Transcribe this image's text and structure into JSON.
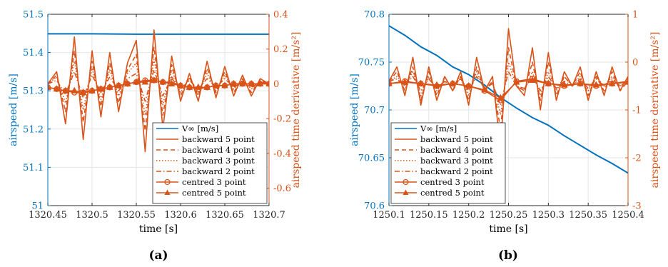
{
  "colors": {
    "airspeed": "#0072BD",
    "derivative": "#D95319",
    "grid": "#e6e6e6",
    "axis": "#262626"
  },
  "chart_data": [
    {
      "type": "line",
      "caption": "(a)",
      "xlabel": "time [s]",
      "ylabel_left": "airspeed [m/s]",
      "ylabel_right": "airspeed time derivative [m/s²]",
      "xlim": [
        1320.45,
        1320.7
      ],
      "ylim_left": [
        51.0,
        51.5
      ],
      "ylim_right": [
        -0.7,
        0.4
      ],
      "xticks": [
        1320.45,
        1320.5,
        1320.55,
        1320.6,
        1320.65,
        1320.7
      ],
      "xtick_labels": [
        "1320.45",
        "1320.5",
        "1320.55",
        "1320.6",
        "1320.65",
        "1320.7"
      ],
      "yticks_left": [
        51,
        51.1,
        51.2,
        51.3,
        51.4,
        51.5
      ],
      "ytick_labels_left": [
        "51",
        "51.1",
        "51.2",
        "51.3",
        "51.4",
        "51.5"
      ],
      "yticks_right": [
        -0.6,
        -0.4,
        -0.2,
        0,
        0.2,
        0.4
      ],
      "ytick_labels_right": [
        "-0.6",
        "-0.4",
        "-0.2",
        "0",
        "0.2",
        "0.4"
      ],
      "grid": true,
      "legend_position": "bottom-right",
      "series": [
        {
          "name": "V∞ [m/s]",
          "axis": "left",
          "style": "solid-blue",
          "x": [
            1320.45,
            1320.5,
            1320.55,
            1320.6,
            1320.65,
            1320.7
          ],
          "y": [
            51.449,
            51.449,
            51.448,
            51.448,
            51.448,
            51.448
          ]
        },
        {
          "name": "backward 5 point",
          "axis": "right",
          "style": "solid",
          "x": [
            1320.45,
            1320.46,
            1320.47,
            1320.48,
            1320.49,
            1320.5,
            1320.51,
            1320.52,
            1320.53,
            1320.54,
            1320.55,
            1320.56,
            1320.57,
            1320.58,
            1320.59,
            1320.6,
            1320.61,
            1320.62,
            1320.63,
            1320.64,
            1320.65,
            1320.66,
            1320.67,
            1320.68,
            1320.69,
            1320.7
          ],
          "y": [
            0,
            0.07,
            -0.23,
            0.27,
            -0.32,
            0.19,
            -0.19,
            0.18,
            -0.16,
            0.12,
            0.25,
            -0.39,
            0.31,
            -0.26,
            0.16,
            -0.1,
            0.06,
            -0.1,
            0.13,
            -0.08,
            0.1,
            -0.07,
            0.05,
            -0.07,
            0.03,
            0
          ]
        },
        {
          "name": "backward 4 point",
          "axis": "right",
          "style": "dashed",
          "x": [
            1320.45,
            1320.46,
            1320.47,
            1320.48,
            1320.49,
            1320.5,
            1320.51,
            1320.52,
            1320.53,
            1320.54,
            1320.55,
            1320.56,
            1320.57,
            1320.58,
            1320.59,
            1320.6,
            1320.61,
            1320.62,
            1320.63,
            1320.64,
            1320.65,
            1320.66,
            1320.67,
            1320.68,
            1320.69,
            1320.7
          ],
          "y": [
            0,
            0.05,
            -0.16,
            0.19,
            -0.22,
            0.13,
            -0.13,
            0.12,
            -0.11,
            0.08,
            0.17,
            -0.27,
            0.21,
            -0.18,
            0.11,
            -0.07,
            0.04,
            -0.07,
            0.09,
            -0.05,
            0.07,
            -0.05,
            0.03,
            -0.05,
            0.02,
            0
          ]
        },
        {
          "name": "backward 3 point",
          "axis": "right",
          "style": "dotted",
          "x": [
            1320.45,
            1320.46,
            1320.47,
            1320.48,
            1320.49,
            1320.5,
            1320.51,
            1320.52,
            1320.53,
            1320.54,
            1320.55,
            1320.56,
            1320.57,
            1320.58,
            1320.59,
            1320.6,
            1320.61,
            1320.62,
            1320.63,
            1320.64,
            1320.65,
            1320.66,
            1320.67,
            1320.68,
            1320.69,
            1320.7
          ],
          "y": [
            0,
            0.04,
            -0.11,
            0.13,
            -0.15,
            0.09,
            -0.09,
            0.08,
            -0.07,
            0.06,
            0.12,
            -0.18,
            0.14,
            -0.12,
            0.08,
            -0.05,
            0.03,
            -0.05,
            0.06,
            -0.04,
            0.05,
            -0.03,
            0.02,
            -0.03,
            0.01,
            0
          ]
        },
        {
          "name": "backward 2 point",
          "axis": "right",
          "style": "dashdot",
          "x": [
            1320.45,
            1320.46,
            1320.47,
            1320.48,
            1320.49,
            1320.5,
            1320.51,
            1320.52,
            1320.53,
            1320.54,
            1320.55,
            1320.56,
            1320.57,
            1320.58,
            1320.59,
            1320.6,
            1320.61,
            1320.62,
            1320.63,
            1320.64,
            1320.65,
            1320.66,
            1320.67,
            1320.68,
            1320.69,
            1320.7
          ],
          "y": [
            0,
            0.02,
            -0.06,
            0.07,
            -0.08,
            0.05,
            -0.05,
            0.04,
            -0.04,
            0.03,
            0.06,
            -0.1,
            0.08,
            -0.07,
            0.04,
            -0.03,
            0.02,
            -0.03,
            0.03,
            -0.02,
            0.03,
            -0.02,
            0.01,
            -0.02,
            0.01,
            0
          ]
        },
        {
          "name": "centred 3 point",
          "axis": "right",
          "style": "circle",
          "x": [
            1320.45,
            1320.46,
            1320.47,
            1320.48,
            1320.49,
            1320.5,
            1320.51,
            1320.52,
            1320.53,
            1320.54,
            1320.55,
            1320.56,
            1320.57,
            1320.58,
            1320.59,
            1320.6,
            1320.61,
            1320.62,
            1320.63,
            1320.64,
            1320.65,
            1320.66,
            1320.67,
            1320.68,
            1320.69,
            1320.7
          ],
          "y": [
            -0.02,
            -0.03,
            -0.04,
            -0.05,
            -0.05,
            -0.04,
            -0.03,
            -0.02,
            -0.01,
            0,
            0.01,
            0.02,
            0.02,
            0.01,
            0.01,
            -0.01,
            -0.02,
            -0.03,
            -0.02,
            -0.01,
            -0.01,
            0,
            0,
            0,
            0,
            0
          ]
        },
        {
          "name": "centred 5 point",
          "axis": "right",
          "style": "triangle",
          "x": [
            1320.45,
            1320.46,
            1320.47,
            1320.48,
            1320.49,
            1320.5,
            1320.51,
            1320.52,
            1320.53,
            1320.54,
            1320.55,
            1320.56,
            1320.57,
            1320.58,
            1320.59,
            1320.6,
            1320.61,
            1320.62,
            1320.63,
            1320.64,
            1320.65,
            1320.66,
            1320.67,
            1320.68,
            1320.69,
            1320.7
          ],
          "y": [
            -0.02,
            -0.03,
            -0.04,
            -0.04,
            -0.05,
            -0.04,
            -0.03,
            -0.02,
            -0.01,
            0,
            0.01,
            0.01,
            0.02,
            0.01,
            0,
            -0.01,
            -0.02,
            -0.02,
            -0.02,
            -0.01,
            -0.01,
            0,
            0,
            0,
            0,
            0
          ]
        }
      ]
    },
    {
      "type": "line",
      "caption": "(b)",
      "xlabel": "time [s]",
      "ylabel_left": "airspeed [m/s]",
      "ylabel_right": "airspeed time derivative [m/s²]",
      "xlim": [
        1250.1,
        1250.4
      ],
      "ylim_left": [
        70.6,
        70.8
      ],
      "ylim_right": [
        -3,
        1
      ],
      "xticks": [
        1250.1,
        1250.15,
        1250.2,
        1250.25,
        1250.3,
        1250.35,
        1250.4
      ],
      "xtick_labels": [
        "1250.1",
        "1250.15",
        "1250.2",
        "1250.25",
        "1250.3",
        "1250.35",
        "1250.4"
      ],
      "yticks_left": [
        70.6,
        70.65,
        70.7,
        70.75,
        70.8
      ],
      "ytick_labels_left": [
        "70.6",
        "70.65",
        "70.7",
        "70.75",
        "70.8"
      ],
      "yticks_right": [
        -3,
        -2,
        -1,
        0,
        1
      ],
      "ytick_labels_right": [
        "-3",
        "-2",
        "-1",
        "0",
        "1"
      ],
      "grid": true,
      "legend_position": "bottom-left",
      "series": [
        {
          "name": "V∞ [m/s]",
          "axis": "left",
          "style": "solid-blue",
          "x": [
            1250.1,
            1250.12,
            1250.14,
            1250.16,
            1250.18,
            1250.2,
            1250.22,
            1250.24,
            1250.26,
            1250.28,
            1250.3,
            1250.32,
            1250.34,
            1250.36,
            1250.38,
            1250.4
          ],
          "y": [
            70.788,
            70.778,
            70.766,
            70.757,
            70.745,
            70.737,
            70.726,
            70.713,
            70.702,
            70.692,
            70.684,
            70.673,
            70.663,
            70.653,
            70.644,
            70.634
          ]
        },
        {
          "name": "backward 5 point",
          "axis": "right",
          "style": "solid",
          "x": [
            1250.1,
            1250.11,
            1250.12,
            1250.13,
            1250.14,
            1250.15,
            1250.16,
            1250.17,
            1250.18,
            1250.19,
            1250.2,
            1250.21,
            1250.22,
            1250.23,
            1250.24,
            1250.25,
            1250.26,
            1250.27,
            1250.28,
            1250.29,
            1250.3,
            1250.31,
            1250.32,
            1250.33,
            1250.34,
            1250.35,
            1250.36,
            1250.37,
            1250.38,
            1250.39,
            1250.4
          ],
          "y": [
            -0.4,
            -0.1,
            -0.7,
            0.1,
            -0.9,
            -0.1,
            -0.8,
            -0.3,
            -0.6,
            -0.2,
            -0.9,
            0.1,
            -0.6,
            -0.3,
            -1.8,
            0.7,
            -0.5,
            -0.7,
            0.3,
            -1.0,
            0.2,
            -0.8,
            -0.2,
            -0.5,
            -0.1,
            -0.8,
            -0.2,
            -0.7,
            -0.1,
            -0.6,
            -0.3
          ]
        },
        {
          "name": "backward 4 point",
          "axis": "right",
          "style": "dashed",
          "x": [
            1250.1,
            1250.11,
            1250.12,
            1250.13,
            1250.14,
            1250.15,
            1250.16,
            1250.17,
            1250.18,
            1250.19,
            1250.2,
            1250.21,
            1250.22,
            1250.23,
            1250.24,
            1250.25,
            1250.26,
            1250.27,
            1250.28,
            1250.29,
            1250.3,
            1250.31,
            1250.32,
            1250.33,
            1250.34,
            1250.35,
            1250.36,
            1250.37,
            1250.38,
            1250.39,
            1250.4
          ],
          "y": [
            -0.4,
            -0.2,
            -0.6,
            -0.1,
            -0.8,
            -0.2,
            -0.7,
            -0.3,
            -0.6,
            -0.3,
            -0.8,
            -0.1,
            -0.6,
            -0.4,
            -1.4,
            0.3,
            -0.5,
            -0.6,
            0.0,
            -0.8,
            0.0,
            -0.7,
            -0.3,
            -0.5,
            -0.2,
            -0.7,
            -0.3,
            -0.6,
            -0.2,
            -0.6,
            -0.4
          ]
        },
        {
          "name": "backward 3 point",
          "axis": "right",
          "style": "dotted",
          "x": [
            1250.1,
            1250.11,
            1250.12,
            1250.13,
            1250.14,
            1250.15,
            1250.16,
            1250.17,
            1250.18,
            1250.19,
            1250.2,
            1250.21,
            1250.22,
            1250.23,
            1250.24,
            1250.25,
            1250.26,
            1250.27,
            1250.28,
            1250.29,
            1250.3,
            1250.31,
            1250.32,
            1250.33,
            1250.34,
            1250.35,
            1250.36,
            1250.37,
            1250.38,
            1250.39,
            1250.4
          ],
          "y": [
            -0.4,
            -0.3,
            -0.5,
            -0.2,
            -0.7,
            -0.3,
            -0.6,
            -0.4,
            -0.5,
            -0.3,
            -0.7,
            -0.2,
            -0.6,
            -0.4,
            -1.1,
            0.0,
            -0.5,
            -0.6,
            -0.2,
            -0.7,
            -0.2,
            -0.6,
            -0.3,
            -0.5,
            -0.3,
            -0.6,
            -0.3,
            -0.5,
            -0.3,
            -0.5,
            -0.4
          ]
        },
        {
          "name": "backward 2 point",
          "axis": "right",
          "style": "dashdot",
          "x": [
            1250.1,
            1250.11,
            1250.12,
            1250.13,
            1250.14,
            1250.15,
            1250.16,
            1250.17,
            1250.18,
            1250.19,
            1250.2,
            1250.21,
            1250.22,
            1250.23,
            1250.24,
            1250.25,
            1250.26,
            1250.27,
            1250.28,
            1250.29,
            1250.3,
            1250.31,
            1250.32,
            1250.33,
            1250.34,
            1250.35,
            1250.36,
            1250.37,
            1250.38,
            1250.39,
            1250.4
          ],
          "y": [
            -0.4,
            -0.35,
            -0.5,
            -0.3,
            -0.6,
            -0.35,
            -0.55,
            -0.4,
            -0.5,
            -0.35,
            -0.6,
            -0.3,
            -0.55,
            -0.45,
            -0.9,
            -0.2,
            -0.5,
            -0.55,
            -0.3,
            -0.6,
            -0.3,
            -0.55,
            -0.4,
            -0.5,
            -0.35,
            -0.55,
            -0.35,
            -0.5,
            -0.35,
            -0.5,
            -0.4
          ]
        },
        {
          "name": "centred 3 point",
          "axis": "right",
          "style": "circle",
          "x": [
            1250.1,
            1250.12,
            1250.14,
            1250.16,
            1250.18,
            1250.2,
            1250.22,
            1250.24,
            1250.26,
            1250.28,
            1250.3,
            1250.32,
            1250.34,
            1250.36,
            1250.38,
            1250.4
          ],
          "y": [
            -0.45,
            -0.4,
            -0.45,
            -0.5,
            -0.45,
            -0.5,
            -0.6,
            -0.8,
            -0.4,
            -0.35,
            -0.45,
            -0.5,
            -0.45,
            -0.5,
            -0.45,
            -0.4
          ]
        },
        {
          "name": "centred 5 point",
          "axis": "right",
          "style": "triangle",
          "x": [
            1250.1,
            1250.12,
            1250.14,
            1250.16,
            1250.18,
            1250.2,
            1250.22,
            1250.24,
            1250.26,
            1250.28,
            1250.3,
            1250.32,
            1250.34,
            1250.36,
            1250.38,
            1250.4
          ],
          "y": [
            -0.45,
            -0.42,
            -0.45,
            -0.48,
            -0.45,
            -0.5,
            -0.58,
            -0.75,
            -0.42,
            -0.38,
            -0.45,
            -0.48,
            -0.45,
            -0.48,
            -0.45,
            -0.42
          ]
        }
      ]
    }
  ]
}
